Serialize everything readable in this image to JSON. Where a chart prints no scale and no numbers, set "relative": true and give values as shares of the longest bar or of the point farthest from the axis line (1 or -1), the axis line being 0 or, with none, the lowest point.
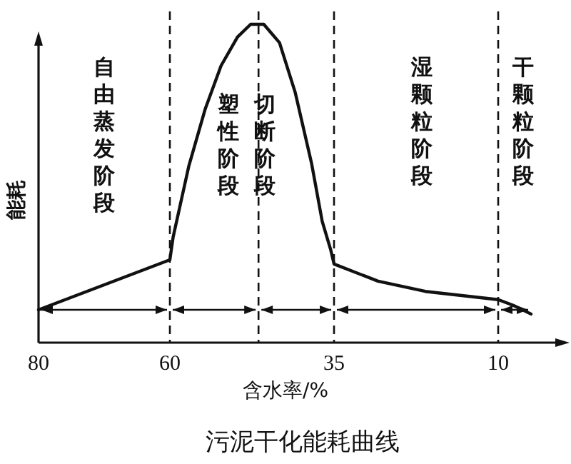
{
  "chart_data": {
    "type": "line",
    "title": "污泥干化能耗曲线",
    "xlabel": "含水率/%",
    "ylabel": "能耗",
    "relative": true,
    "color": "#111111",
    "line_style": "solid",
    "xlim": [
      80,
      0
    ],
    "xticks": [
      80,
      60,
      35,
      10
    ],
    "x": [
      80,
      60,
      59.5,
      57.1,
      54.6,
      52.2,
      49.7,
      47.7,
      45.7,
      43.3,
      40.9,
      38.4,
      36.8,
      35.5,
      35,
      28.3,
      21.1,
      10,
      7.7,
      5
    ],
    "values": [
      0.103,
      0.26,
      0.332,
      0.556,
      0.735,
      0.87,
      0.96,
      1.0,
      1.0,
      0.942,
      0.785,
      0.561,
      0.381,
      0.291,
      0.247,
      0.193,
      0.161,
      0.135,
      0.117,
      0.09
    ],
    "ref_lines": [
      {
        "axis": "x",
        "value": 60,
        "line_style": "dashed"
      },
      {
        "axis": "x",
        "value": 46.5,
        "line_style": "dashed"
      },
      {
        "axis": "x",
        "value": 35,
        "line_style": "dashed"
      },
      {
        "axis": "x",
        "value": 10,
        "line_style": "dashed"
      }
    ],
    "annotations": [
      "自由蒸发阶段",
      "塑性阶段",
      "切断阶段",
      "湿颗粒阶段",
      "干颗粒阶段"
    ]
  }
}
